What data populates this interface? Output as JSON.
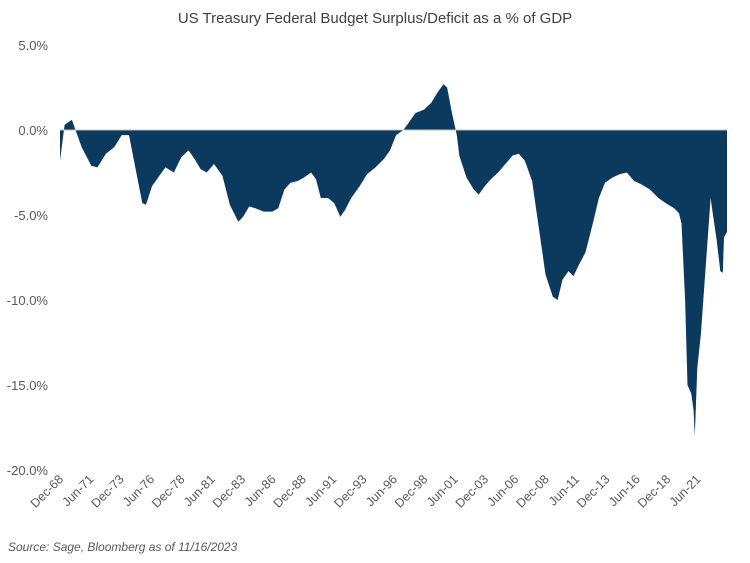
{
  "chart_data": {
    "type": "area",
    "title": "US Treasury Federal Budget Surplus/Deficit as a % of GDP",
    "xlabel": "",
    "ylabel": "",
    "ylim": [
      -20,
      5
    ],
    "y_ticks": [
      "5.0%",
      "0.0%",
      "-5.0%",
      "-10.0%",
      "-15.0%",
      "-20.0%"
    ],
    "y_tick_values": [
      5,
      0,
      -5,
      -10,
      -15,
      -20
    ],
    "x_range_years": [
      1968.92,
      2023.85
    ],
    "x_ticks": [
      "Dec-68",
      "Jun-71",
      "Dec-73",
      "Jun-76",
      "Dec-78",
      "Jun-81",
      "Dec-83",
      "Jun-86",
      "Dec-88",
      "Jun-91",
      "Dec-93",
      "Jun-96",
      "Dec-98",
      "Jun-01",
      "Dec-03",
      "Jun-06",
      "Dec-08",
      "Jun-11",
      "Dec-13",
      "Jun-16",
      "Dec-18",
      "Jun-21"
    ],
    "x_tick_values": [
      1968.92,
      1971.42,
      1973.92,
      1976.42,
      1978.92,
      1981.42,
      1983.92,
      1986.42,
      1988.92,
      1991.42,
      1993.92,
      1996.42,
      1998.92,
      2001.42,
      2003.92,
      2006.42,
      2008.92,
      2011.42,
      2013.92,
      2016.42,
      2018.92,
      2021.42
    ],
    "grid": false,
    "color": "#0c3a5e",
    "series": [
      {
        "name": "Surplus/Deficit % of GDP",
        "x": [
          1968.92,
          1969.3,
          1969.9,
          1970.2,
          1970.7,
          1971.5,
          1972.0,
          1972.7,
          1973.4,
          1974.0,
          1974.6,
          1975.2,
          1975.7,
          1976.0,
          1976.5,
          1977.0,
          1977.6,
          1978.3,
          1978.9,
          1979.5,
          1980.0,
          1980.5,
          1981.0,
          1981.6,
          1982.3,
          1982.9,
          1983.6,
          1984.0,
          1984.5,
          1985.0,
          1985.7,
          1986.4,
          1986.9,
          1987.4,
          1987.9,
          1988.5,
          1989.0,
          1989.6,
          1990.0,
          1990.4,
          1991.0,
          1991.5,
          1992.0,
          1992.4,
          1992.9,
          1993.6,
          1994.2,
          1994.9,
          1995.6,
          1996.1,
          1996.6,
          1997.2,
          1997.6,
          1998.2,
          1998.9,
          1999.5,
          2000.0,
          2000.5,
          2000.8,
          2001.2,
          2001.6,
          2001.8,
          2002.4,
          2003.0,
          2003.4,
          2003.9,
          2004.4,
          2005.0,
          2005.6,
          2006.2,
          2006.7,
          2007.2,
          2007.8,
          2008.3,
          2008.9,
          2009.5,
          2009.9,
          2010.3,
          2010.8,
          2011.2,
          2011.6,
          2012.2,
          2012.8,
          2013.3,
          2013.8,
          2014.4,
          2015.0,
          2015.6,
          2016.2,
          2016.8,
          2017.5,
          2018.2,
          2018.8,
          2019.5,
          2019.9,
          2020.1,
          2020.4,
          2020.6,
          2020.9,
          2021.1,
          2021.2,
          2021.4,
          2021.7,
          2021.9,
          2022.3,
          2022.5,
          2022.7,
          2023.0,
          2023.3,
          2023.5,
          2023.6,
          2023.85
        ],
        "values": [
          -1.8,
          0.3,
          0.6,
          0.0,
          -1.0,
          -2.1,
          -2.2,
          -1.4,
          -1.0,
          -0.3,
          -0.3,
          -2.5,
          -4.3,
          -4.4,
          -3.3,
          -2.8,
          -2.2,
          -2.5,
          -1.6,
          -1.2,
          -1.7,
          -2.3,
          -2.5,
          -2.0,
          -2.7,
          -4.4,
          -5.4,
          -5.1,
          -4.5,
          -4.6,
          -4.8,
          -4.8,
          -4.6,
          -3.5,
          -3.1,
          -3.0,
          -2.8,
          -2.5,
          -2.9,
          -4.0,
          -4.0,
          -4.3,
          -5.1,
          -4.7,
          -4.0,
          -3.3,
          -2.6,
          -2.2,
          -1.7,
          -1.2,
          -0.3,
          0.0,
          0.4,
          1.0,
          1.2,
          1.6,
          2.2,
          2.7,
          2.5,
          1.0,
          -0.3,
          -1.5,
          -2.8,
          -3.5,
          -3.8,
          -3.3,
          -2.9,
          -2.5,
          -2.0,
          -1.5,
          -1.4,
          -1.8,
          -3.0,
          -5.5,
          -8.5,
          -9.8,
          -10.0,
          -8.8,
          -8.3,
          -8.6,
          -8.0,
          -7.2,
          -5.5,
          -4.0,
          -3.1,
          -2.8,
          -2.6,
          -2.5,
          -3.0,
          -3.2,
          -3.5,
          -4.0,
          -4.3,
          -4.6,
          -4.9,
          -5.5,
          -10.0,
          -15.0,
          -15.5,
          -16.5,
          -18.0,
          -14.0,
          -12.0,
          -10.0,
          -6.0,
          -4.0,
          -5.0,
          -6.5,
          -8.3,
          -8.4,
          -6.3,
          -6.0
        ]
      }
    ]
  },
  "source": "Source: Sage, Bloomberg as of 11/16/2023"
}
